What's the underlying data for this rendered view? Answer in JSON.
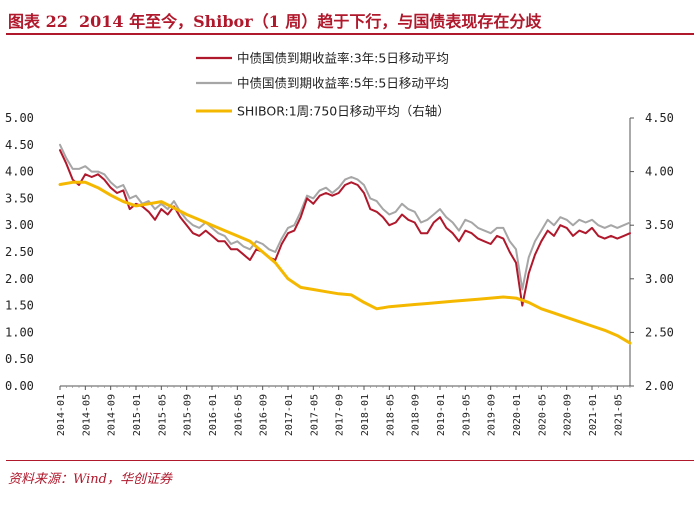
{
  "header": {
    "figure_label": "图表 22",
    "title": "2014 年至今，Shibor（1 周）趋于下行，与国债表现存在分歧"
  },
  "footer": {
    "source": "资料来源：Wind，华创证券"
  },
  "chart_data": {
    "type": "line",
    "colors": {
      "cgb3y": "#b0182c",
      "cgb5y": "#a6a6a6",
      "shibor": "#f5b800"
    },
    "left_axis": {
      "ylim": [
        0,
        5
      ],
      "ticks": [
        "0.00",
        "0.50",
        "1.00",
        "1.50",
        "2.00",
        "2.50",
        "3.00",
        "3.50",
        "4.00",
        "4.50",
        "5.00"
      ]
    },
    "right_axis": {
      "ylim": [
        2,
        4.5
      ],
      "ticks": [
        "2.00",
        "2.50",
        "3.00",
        "3.50",
        "4.00",
        "4.50"
      ]
    },
    "x_ticks": [
      "2014-01",
      "2014-05",
      "2014-09",
      "2015-01",
      "2015-05",
      "2015-09",
      "2016-01",
      "2016-05",
      "2016-09",
      "2017-01",
      "2017-05",
      "2017-09",
      "2018-01",
      "2018-05",
      "2018-09",
      "2019-01",
      "2019-05",
      "2019-09",
      "2020-01",
      "2020-05",
      "2020-09",
      "2021-01",
      "2021-05"
    ],
    "x_range_months": [
      0,
      90
    ],
    "legend": [
      {
        "label": "中债国债到期收益率:3年:5日移动平均",
        "series": "cgb3y"
      },
      {
        "label": "中债国债到期收益率:5年:5日移动平均",
        "series": "cgb5y"
      },
      {
        "label": "SHIBOR:1周:750日移动平均（右轴）",
        "series": "shibor"
      }
    ],
    "series": [
      {
        "name": "中债国债到期收益率:3年:5日移动平均",
        "key": "cgb3y",
        "axis": "left",
        "points": [
          [
            0,
            4.4
          ],
          [
            1,
            4.15
          ],
          [
            2,
            3.85
          ],
          [
            3,
            3.75
          ],
          [
            4,
            3.95
          ],
          [
            5,
            3.9
          ],
          [
            6,
            3.95
          ],
          [
            7,
            3.85
          ],
          [
            8,
            3.7
          ],
          [
            9,
            3.6
          ],
          [
            10,
            3.65
          ],
          [
            11,
            3.3
          ],
          [
            12,
            3.4
          ],
          [
            13,
            3.35
          ],
          [
            14,
            3.25
          ],
          [
            15,
            3.1
          ],
          [
            16,
            3.3
          ],
          [
            17,
            3.2
          ],
          [
            18,
            3.35
          ],
          [
            19,
            3.15
          ],
          [
            20,
            3.0
          ],
          [
            21,
            2.85
          ],
          [
            22,
            2.8
          ],
          [
            23,
            2.9
          ],
          [
            24,
            2.8
          ],
          [
            25,
            2.7
          ],
          [
            26,
            2.7
          ],
          [
            27,
            2.55
          ],
          [
            28,
            2.55
          ],
          [
            29,
            2.45
          ],
          [
            30,
            2.35
          ],
          [
            31,
            2.55
          ],
          [
            32,
            2.5
          ],
          [
            33,
            2.4
          ],
          [
            34,
            2.35
          ],
          [
            35,
            2.65
          ],
          [
            36,
            2.85
          ],
          [
            37,
            2.9
          ],
          [
            38,
            3.15
          ],
          [
            39,
            3.5
          ],
          [
            40,
            3.4
          ],
          [
            41,
            3.55
          ],
          [
            42,
            3.6
          ],
          [
            43,
            3.55
          ],
          [
            44,
            3.6
          ],
          [
            45,
            3.75
          ],
          [
            46,
            3.8
          ],
          [
            47,
            3.75
          ],
          [
            48,
            3.6
          ],
          [
            49,
            3.3
          ],
          [
            50,
            3.25
          ],
          [
            51,
            3.15
          ],
          [
            52,
            3.0
          ],
          [
            53,
            3.05
          ],
          [
            54,
            3.2
          ],
          [
            55,
            3.1
          ],
          [
            56,
            3.05
          ],
          [
            57,
            2.85
          ],
          [
            58,
            2.85
          ],
          [
            59,
            3.05
          ],
          [
            60,
            3.15
          ],
          [
            61,
            2.95
          ],
          [
            62,
            2.85
          ],
          [
            63,
            2.7
          ],
          [
            64,
            2.9
          ],
          [
            65,
            2.85
          ],
          [
            66,
            2.75
          ],
          [
            67,
            2.7
          ],
          [
            68,
            2.65
          ],
          [
            69,
            2.8
          ],
          [
            70,
            2.75
          ],
          [
            71,
            2.5
          ],
          [
            72,
            2.3
          ],
          [
            73,
            1.5
          ],
          [
            74,
            2.1
          ],
          [
            75,
            2.45
          ],
          [
            76,
            2.7
          ],
          [
            77,
            2.9
          ],
          [
            78,
            2.8
          ],
          [
            79,
            3.0
          ],
          [
            80,
            2.95
          ],
          [
            81,
            2.8
          ],
          [
            82,
            2.9
          ],
          [
            83,
            2.85
          ],
          [
            84,
            2.95
          ],
          [
            85,
            2.8
          ],
          [
            86,
            2.75
          ],
          [
            87,
            2.8
          ],
          [
            88,
            2.75
          ],
          [
            89,
            2.8
          ],
          [
            90,
            2.85
          ]
        ]
      },
      {
        "name": "中债国债到期收益率:5年:5日移动平均",
        "key": "cgb5y",
        "axis": "left",
        "points": [
          [
            0,
            4.5
          ],
          [
            1,
            4.25
          ],
          [
            2,
            4.05
          ],
          [
            3,
            4.05
          ],
          [
            4,
            4.1
          ],
          [
            5,
            4.0
          ],
          [
            6,
            4.0
          ],
          [
            7,
            3.95
          ],
          [
            8,
            3.8
          ],
          [
            9,
            3.7
          ],
          [
            10,
            3.75
          ],
          [
            11,
            3.5
          ],
          [
            12,
            3.55
          ],
          [
            13,
            3.4
          ],
          [
            14,
            3.45
          ],
          [
            15,
            3.3
          ],
          [
            16,
            3.4
          ],
          [
            17,
            3.3
          ],
          [
            18,
            3.45
          ],
          [
            19,
            3.25
          ],
          [
            20,
            3.1
          ],
          [
            21,
            3.0
          ],
          [
            22,
            2.95
          ],
          [
            23,
            3.05
          ],
          [
            24,
            2.95
          ],
          [
            25,
            2.85
          ],
          [
            26,
            2.8
          ],
          [
            27,
            2.65
          ],
          [
            28,
            2.7
          ],
          [
            29,
            2.6
          ],
          [
            30,
            2.55
          ],
          [
            31,
            2.7
          ],
          [
            32,
            2.65
          ],
          [
            33,
            2.55
          ],
          [
            34,
            2.5
          ],
          [
            35,
            2.75
          ],
          [
            36,
            2.95
          ],
          [
            37,
            3.0
          ],
          [
            38,
            3.25
          ],
          [
            39,
            3.55
          ],
          [
            40,
            3.5
          ],
          [
            41,
            3.65
          ],
          [
            42,
            3.7
          ],
          [
            43,
            3.6
          ],
          [
            44,
            3.7
          ],
          [
            45,
            3.85
          ],
          [
            46,
            3.9
          ],
          [
            47,
            3.85
          ],
          [
            48,
            3.75
          ],
          [
            49,
            3.5
          ],
          [
            50,
            3.45
          ],
          [
            51,
            3.3
          ],
          [
            52,
            3.2
          ],
          [
            53,
            3.25
          ],
          [
            54,
            3.4
          ],
          [
            55,
            3.3
          ],
          [
            56,
            3.25
          ],
          [
            57,
            3.05
          ],
          [
            58,
            3.1
          ],
          [
            59,
            3.2
          ],
          [
            60,
            3.3
          ],
          [
            61,
            3.15
          ],
          [
            62,
            3.05
          ],
          [
            63,
            2.9
          ],
          [
            64,
            3.1
          ],
          [
            65,
            3.05
          ],
          [
            66,
            2.95
          ],
          [
            67,
            2.9
          ],
          [
            68,
            2.85
          ],
          [
            69,
            2.95
          ],
          [
            70,
            2.95
          ],
          [
            71,
            2.7
          ],
          [
            72,
            2.55
          ],
          [
            73,
            1.8
          ],
          [
            74,
            2.4
          ],
          [
            75,
            2.7
          ],
          [
            76,
            2.9
          ],
          [
            77,
            3.1
          ],
          [
            78,
            3.0
          ],
          [
            79,
            3.15
          ],
          [
            80,
            3.1
          ],
          [
            81,
            3.0
          ],
          [
            82,
            3.1
          ],
          [
            83,
            3.05
          ],
          [
            84,
            3.1
          ],
          [
            85,
            3.0
          ],
          [
            86,
            2.95
          ],
          [
            87,
            3.0
          ],
          [
            88,
            2.95
          ],
          [
            89,
            3.0
          ],
          [
            90,
            3.05
          ]
        ]
      },
      {
        "name": "SHIBOR:1周:750日移动平均（右轴）",
        "key": "shibor",
        "axis": "right",
        "points": [
          [
            0,
            3.88
          ],
          [
            2,
            3.9
          ],
          [
            4,
            3.9
          ],
          [
            6,
            3.85
          ],
          [
            8,
            3.78
          ],
          [
            10,
            3.72
          ],
          [
            12,
            3.68
          ],
          [
            14,
            3.7
          ],
          [
            16,
            3.72
          ],
          [
            18,
            3.66
          ],
          [
            20,
            3.6
          ],
          [
            22,
            3.55
          ],
          [
            24,
            3.5
          ],
          [
            26,
            3.45
          ],
          [
            28,
            3.4
          ],
          [
            30,
            3.35
          ],
          [
            32,
            3.25
          ],
          [
            34,
            3.15
          ],
          [
            36,
            3.0
          ],
          [
            38,
            2.92
          ],
          [
            40,
            2.9
          ],
          [
            42,
            2.88
          ],
          [
            44,
            2.86
          ],
          [
            46,
            2.85
          ],
          [
            48,
            2.78
          ],
          [
            50,
            2.72
          ],
          [
            52,
            2.74
          ],
          [
            54,
            2.75
          ],
          [
            56,
            2.76
          ],
          [
            58,
            2.77
          ],
          [
            60,
            2.78
          ],
          [
            62,
            2.79
          ],
          [
            64,
            2.8
          ],
          [
            66,
            2.81
          ],
          [
            68,
            2.82
          ],
          [
            70,
            2.83
          ],
          [
            72,
            2.82
          ],
          [
            74,
            2.78
          ],
          [
            76,
            2.72
          ],
          [
            78,
            2.68
          ],
          [
            80,
            2.64
          ],
          [
            82,
            2.6
          ],
          [
            84,
            2.56
          ],
          [
            86,
            2.52
          ],
          [
            88,
            2.47
          ],
          [
            90,
            2.4
          ]
        ]
      }
    ]
  }
}
